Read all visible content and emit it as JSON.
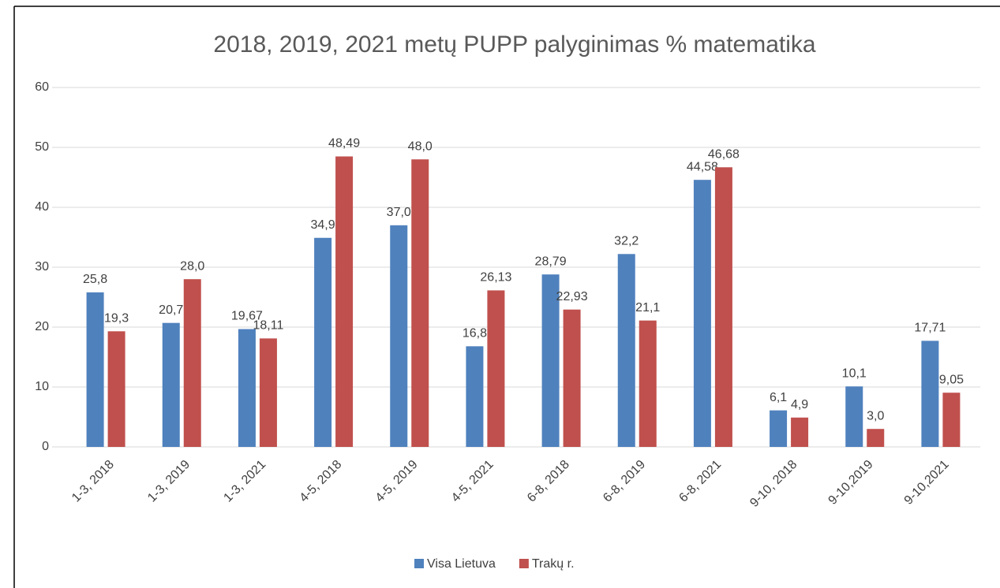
{
  "chart_data": {
    "type": "bar",
    "title": "2018, 2019, 2021 metų PUPP palyginimas % matematika",
    "categories": [
      "1-3, 2018",
      "1-3, 2019",
      "1-3, 2021",
      "4-5, 2018",
      "4-5, 2019",
      "4-5, 2021",
      "6-8, 2018",
      "6-8, 2019",
      "6-8, 2021",
      "9-10, 2018",
      "9-10,2019",
      "9-10,2021"
    ],
    "series": [
      {
        "name": "Visa Lietuva",
        "color": "#4f81bd",
        "values": [
          25.8,
          20.7,
          19.67,
          34.9,
          37.0,
          16.8,
          28.79,
          32.2,
          44.58,
          6.1,
          10.1,
          17.71
        ],
        "value_labels": [
          "25,8",
          "20,7",
          "19,67",
          "34,9",
          "37,0",
          "16,8",
          "28,79",
          "32,2",
          "44,58",
          "6,1",
          "10,1",
          "17,71"
        ]
      },
      {
        "name": "Trakų r.",
        "color": "#c0504d",
        "values": [
          19.3,
          28.0,
          18.11,
          48.49,
          48.0,
          26.13,
          22.93,
          21.1,
          46.68,
          4.9,
          3.0,
          9.05
        ],
        "value_labels": [
          "19,3",
          "28,0",
          "18,11",
          "48,49",
          "48,0",
          "26,13",
          "22,93",
          "21,1",
          "46,68",
          "4,9",
          "3,0",
          "9,05"
        ]
      }
    ],
    "ylim": [
      0,
      60
    ],
    "yticks": [
      0,
      10,
      20,
      30,
      40,
      50,
      60
    ],
    "grid": true,
    "legend": "bottom"
  }
}
